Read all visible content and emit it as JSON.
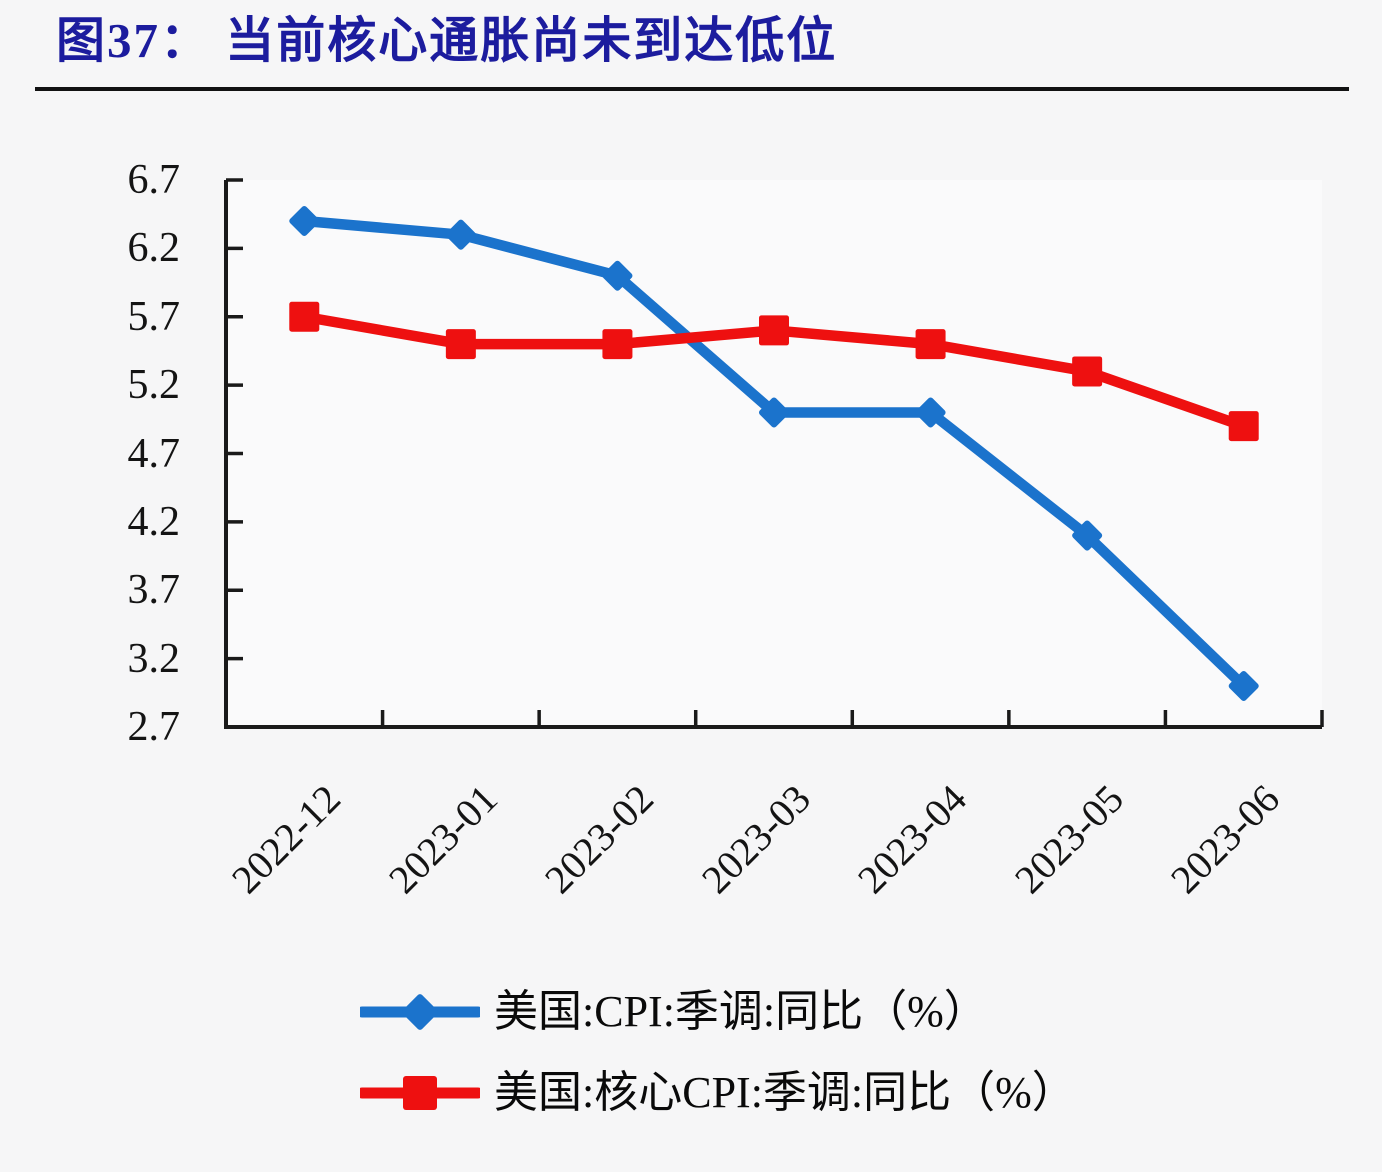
{
  "page": {
    "background": "#f6f6f7"
  },
  "header": {
    "title": "图37： 当前核心通胀尚未到达低位",
    "title_color": "#1c1c9e",
    "rule_color": "#121212"
  },
  "chart_data": {
    "type": "line",
    "title": "图37： 当前核心通胀尚未到达低位",
    "xlabel": "",
    "ylabel": "",
    "categories": [
      "2022-12",
      "2023-01",
      "2023-02",
      "2023-03",
      "2023-04",
      "2023-05",
      "2023-06"
    ],
    "series": [
      {
        "name": "美国:CPI:季调:同比（%）",
        "color": "#1b73cc",
        "marker": "diamond",
        "values": [
          6.4,
          6.3,
          6.0,
          5.0,
          5.0,
          4.1,
          3.0
        ]
      },
      {
        "name": "美国:核心CPI:季调:同比（%）",
        "color": "#ee1010",
        "marker": "square",
        "values": [
          5.7,
          5.5,
          5.5,
          5.6,
          5.5,
          5.3,
          4.9
        ]
      }
    ],
    "ylim": [
      2.7,
      6.7
    ],
    "yticks": [
      6.7,
      6.2,
      5.7,
      5.2,
      4.7,
      4.2,
      3.7,
      3.2,
      2.7
    ],
    "axis_color": "#1a1a1a",
    "grid": false,
    "legend_position": "bottom"
  }
}
